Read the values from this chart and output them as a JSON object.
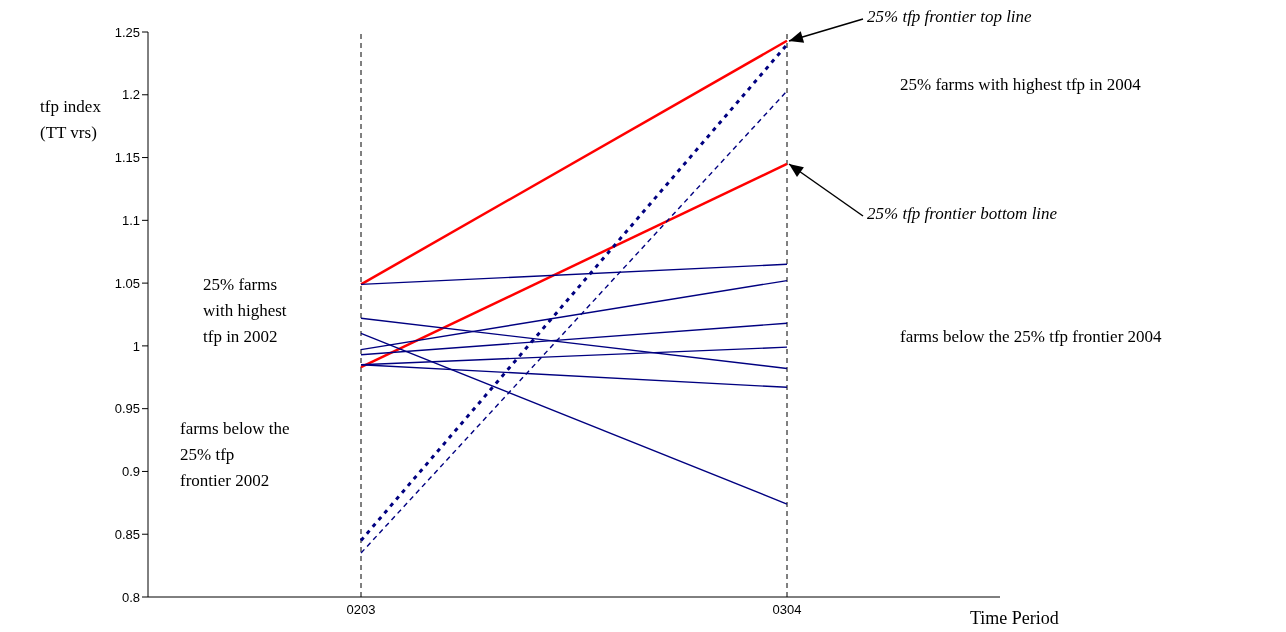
{
  "chart_data": {
    "type": "line",
    "categories": [
      "0203",
      "0304"
    ],
    "xlabel": "Time Period",
    "ylabel": "tfp index\n(TT vrs)",
    "ylim": [
      0.8,
      1.25
    ],
    "yticks": [
      0.8,
      0.85,
      0.9,
      0.95,
      1,
      1.05,
      1.1,
      1.15,
      1.2,
      1.25
    ],
    "grid": false,
    "legend": false,
    "line_style": "solid",
    "series": [
      {
        "color": "#ff0000",
        "values": [
          1.049,
          1.243
        ]
      },
      {
        "color": "#ff0000",
        "values": [
          0.983,
          1.145
        ]
      },
      {
        "color": "#000080",
        "values": [
          1.049,
          1.065
        ]
      },
      {
        "color": "#000080",
        "values": [
          1.022,
          0.982
        ]
      },
      {
        "color": "#000080",
        "values": [
          1.01,
          0.874
        ]
      },
      {
        "color": "#000080",
        "values": [
          0.997,
          1.052
        ]
      },
      {
        "color": "#000080",
        "values": [
          0.993,
          1.018
        ]
      },
      {
        "color": "#000080",
        "values": [
          0.985,
          0.999
        ]
      },
      {
        "color": "#000080",
        "values": [
          0.985,
          0.967
        ]
      },
      {
        "color": "#000080",
        "values": [
          0.845,
          1.24
        ],
        "line_style": "dotted"
      },
      {
        "color": "#000080",
        "values": [
          0.835,
          1.203
        ],
        "line_style": "dashed"
      }
    ],
    "ref_lines": [
      {
        "axis": "x",
        "value": "0203",
        "color": "#000000",
        "line_style": "dashed"
      },
      {
        "axis": "x",
        "value": "0304",
        "color": "#000000",
        "line_style": "dashed"
      }
    ],
    "annotations": [
      {
        "text": "25% tfp frontier top line",
        "x": "0304",
        "y": 1.243
      },
      "25% farms with highest tfp in 2004",
      {
        "text": "25% tfp frontier bottom line",
        "x": "0304",
        "y": 1.145
      },
      "farms below the 25% tfp frontier 2004",
      "25% farms\nwith highest\ntfp in 2002",
      "farms below the\n25% tfp\nfrontier 2002"
    ]
  }
}
